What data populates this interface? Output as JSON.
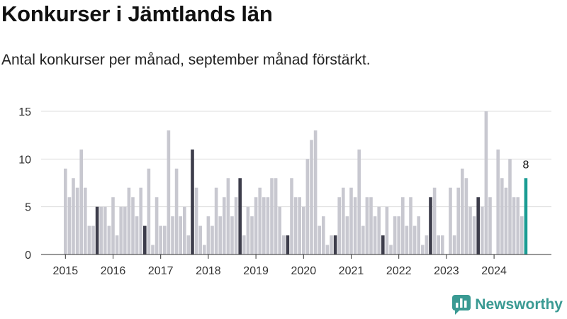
{
  "header": {
    "title": "Konkurser i Jämtlands län",
    "subtitle": "Antal konkurser per månad, september månad förstärkt."
  },
  "brand": {
    "name": "Newsworthy",
    "color": "#3a9a93",
    "icon": "newsworthy-logo-icon"
  },
  "colors": {
    "bar": "#c8c8d0",
    "highlight": "#3d3d4b",
    "latest": "#1a9c93",
    "grid": "#dddddd"
  },
  "chart_data": {
    "type": "bar",
    "start": "2015-01",
    "highlight_month": "september",
    "ylim": [
      0,
      15
    ],
    "yticks": [
      0,
      5,
      10,
      15
    ],
    "xticks": [
      "2015",
      "2016",
      "2017",
      "2018",
      "2019",
      "2020",
      "2021",
      "2022",
      "2023",
      "2024"
    ],
    "grid": true,
    "annotation": {
      "label": "8",
      "target": "2024-09"
    },
    "values": [
      9,
      6,
      8,
      7,
      11,
      7,
      3,
      3,
      5,
      5,
      5,
      3,
      6,
      2,
      5,
      5,
      7,
      6,
      4,
      7,
      3,
      9,
      1,
      6,
      3,
      3,
      13,
      4,
      9,
      4,
      5,
      2,
      11,
      7,
      3,
      1,
      4,
      3,
      7,
      4,
      6,
      8,
      4,
      6,
      8,
      2,
      5,
      4,
      6,
      7,
      6,
      6,
      8,
      8,
      5,
      2,
      2,
      8,
      6,
      6,
      5,
      10,
      12,
      13,
      3,
      4,
      1,
      2,
      2,
      6,
      7,
      4,
      7,
      6,
      11,
      3,
      6,
      6,
      4,
      5,
      2,
      5,
      1,
      4,
      4,
      6,
      3,
      6,
      3,
      4,
      1,
      2,
      6,
      7,
      2,
      2,
      0,
      7,
      2,
      7,
      9,
      8,
      5,
      4,
      6,
      5,
      15,
      6,
      0,
      11,
      8,
      7,
      10,
      6,
      6,
      4,
      8
    ]
  }
}
